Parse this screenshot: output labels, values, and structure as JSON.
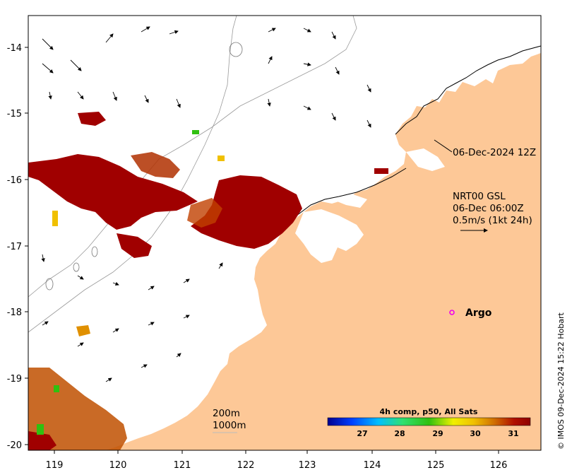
{
  "map": {
    "lon_ticks": [
      "119",
      "120",
      "121",
      "122",
      "123",
      "124",
      "125",
      "126"
    ],
    "lat_ticks": [
      "-14",
      "-15",
      "-16",
      "-17",
      "-18",
      "-19",
      "-20"
    ],
    "land_color": "#fdc897",
    "sea_color": "#ffffff"
  },
  "annotations": {
    "coast_date": "06-Dec-2024 12Z",
    "current_product": "NRT00 GSL",
    "current_time": "06-Dec 06:00Z",
    "current_scale": "0.5m/s (1kt 24h)",
    "argo_label": "Argo",
    "argo_marker_color": "#ee00ee",
    "isobath_200": "200m",
    "isobath_1000": "1000m"
  },
  "colorbar": {
    "title": "4h comp, p50, All Sats",
    "ticks": [
      "27",
      "28",
      "29",
      "30",
      "31"
    ]
  },
  "credit": "© IMOS 09-Dec-2024 15:22 Hobart"
}
